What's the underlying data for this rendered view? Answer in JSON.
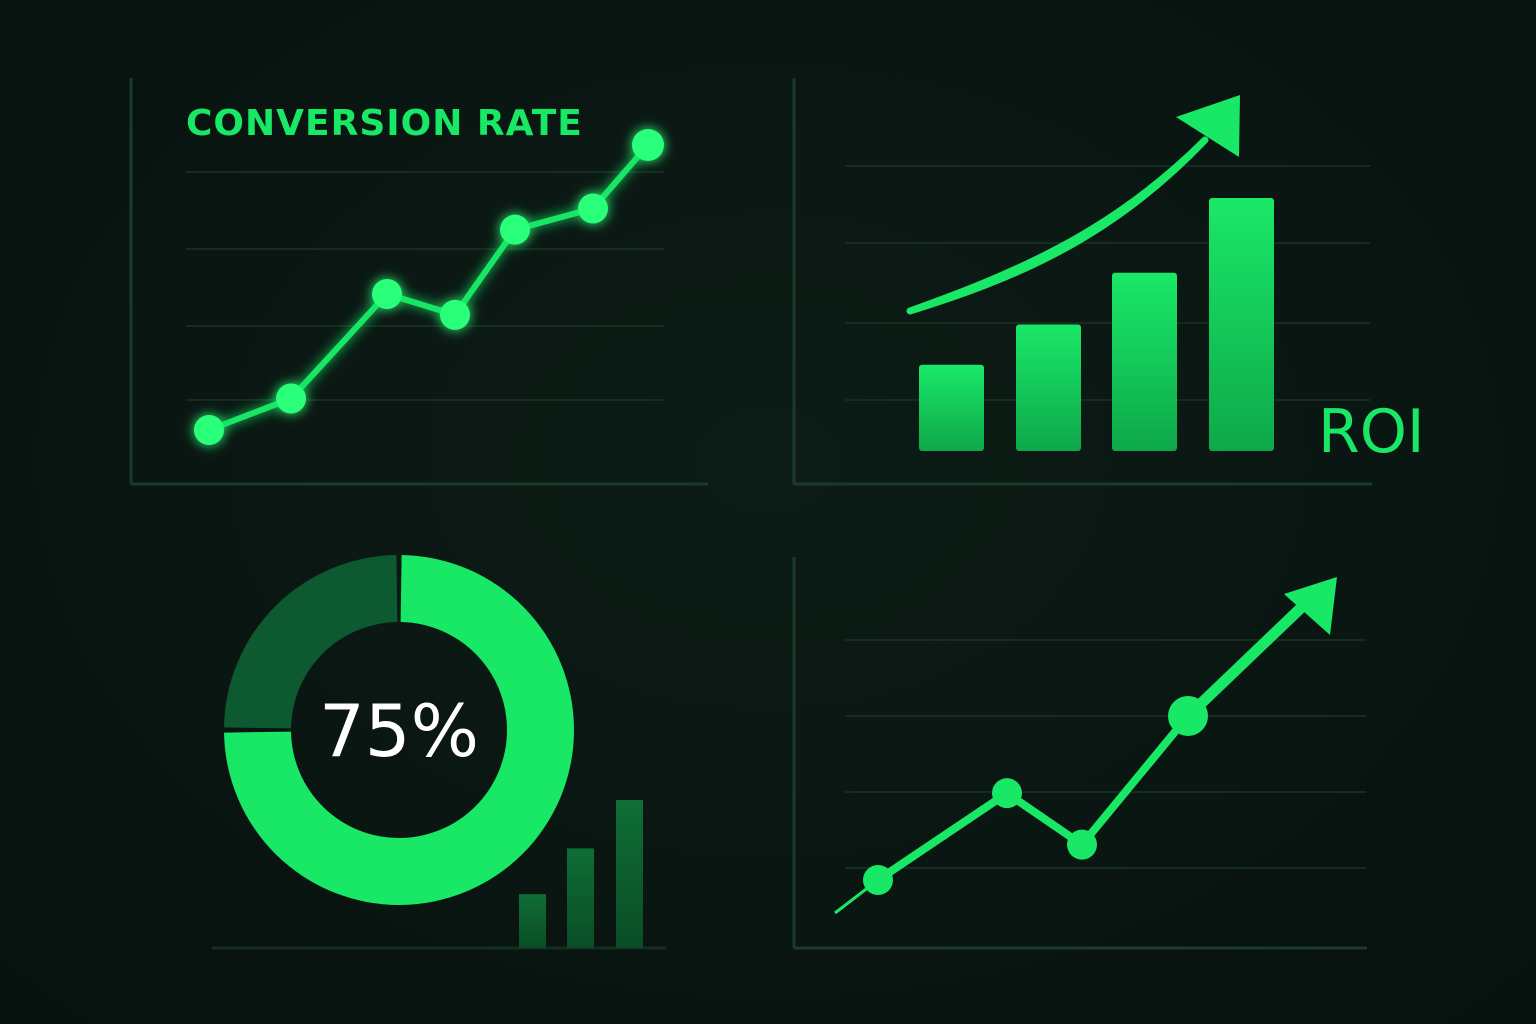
{
  "theme": {
    "background": "#0a1612",
    "accent": "#19e866",
    "accent_bright": "#2bff7a",
    "accent_dim": "#0d6b34",
    "axis": "#1a3a2a",
    "grid": "#132d21",
    "text_light": "#ffffff"
  },
  "chart_data": [
    {
      "type": "line",
      "title": "CONVERSION RATE",
      "x": [
        1,
        2,
        3,
        4,
        5,
        6,
        7
      ],
      "values": [
        3.7,
        15.3,
        53.8,
        46.1,
        77.5,
        85.3,
        108.7
      ],
      "ylim": [
        -10,
        125
      ],
      "grid": true,
      "marker": "circle",
      "glow": true
    },
    {
      "type": "bar",
      "label": "ROI",
      "categories": [
        "1",
        "2",
        "3",
        "4"
      ],
      "values": [
        30,
        44,
        62,
        88
      ],
      "ylim": [
        0,
        100
      ],
      "grid": true,
      "trend_arrow": true
    },
    {
      "type": "pie",
      "center_label": "75%",
      "slices": [
        {
          "name": "value",
          "value": 75,
          "color": "#19e866"
        },
        {
          "name": "remainder",
          "value": 25,
          "color": "#0d5a30"
        }
      ],
      "donut": true,
      "mini_bars": [
        20,
        37,
        55
      ]
    },
    {
      "type": "line",
      "x": [
        1,
        2,
        3,
        4
      ],
      "values": [
        15,
        42,
        26,
        66
      ],
      "ylim": [
        0,
        100
      ],
      "grid": true,
      "marker": "circle",
      "trend_arrow": true
    }
  ]
}
